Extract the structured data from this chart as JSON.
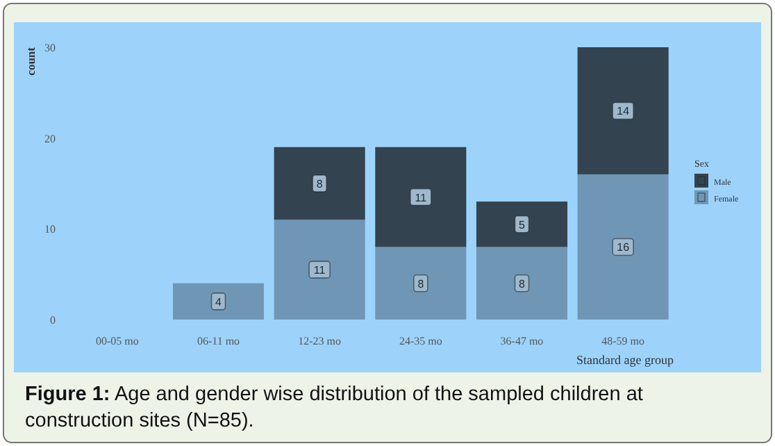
{
  "chart_data": {
    "type": "bar",
    "stacked": true,
    "xlabel": "Standard age group",
    "ylabel": "count",
    "legend_title": "Sex",
    "legend": "right",
    "grid": false,
    "categories": [
      "00-05 mo",
      "06-11 mo",
      "12-23 mo",
      "24-35 mo",
      "36-47 mo",
      "48-59 mo"
    ],
    "series": [
      {
        "name": "Female",
        "color": "#6f97b5",
        "values": [
          0,
          4,
          11,
          8,
          8,
          16
        ],
        "value_labels": [
          null,
          "4",
          "11",
          "8",
          "8",
          "16"
        ]
      },
      {
        "name": "Male",
        "color": "#33434f",
        "values": [
          0,
          0,
          8,
          11,
          5,
          14
        ],
        "value_labels": [
          null,
          null,
          "8",
          "11",
          "5",
          "14"
        ]
      }
    ],
    "ylim": [
      0,
      30
    ],
    "yticks": [
      0,
      10,
      20,
      30
    ],
    "annotations": [
      "Figure 1: Age and gender wise distribution of the sampled children at construction sites (N=85)."
    ]
  }
}
